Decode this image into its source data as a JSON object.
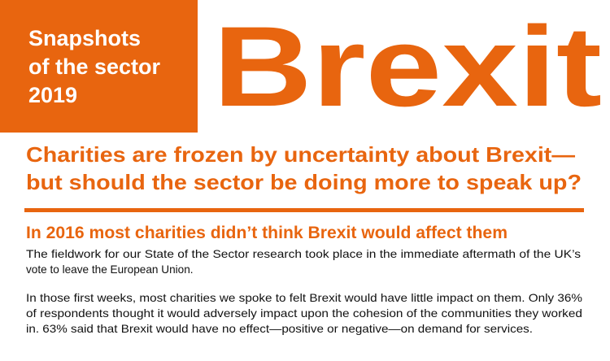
{
  "header": {
    "badge_lines": [
      "Snapshots",
      "of the sector",
      "2019"
    ],
    "title": "Brexit"
  },
  "subtitle_lines": [
    "Charities are frozen by uncertainty about Brexit—",
    "but should the sector be doing more to speak up?"
  ],
  "section": {
    "heading": "In 2016 most charities didn’t think Brexit would affect them",
    "paragraphs": [
      [
        "The fieldwork for our State of the Sector research took place in the immediate aftermath of the UK’s",
        "vote to leave the European Union."
      ],
      [
        "In those first weeks, most charities we spoke to felt Brexit would have little impact on them. Only 36%",
        "of respondents thought it would adversely impact upon the cohesion of the communities they worked",
        "in. 63% said that Brexit would have no effect—positive or negative—on demand for services."
      ]
    ]
  }
}
